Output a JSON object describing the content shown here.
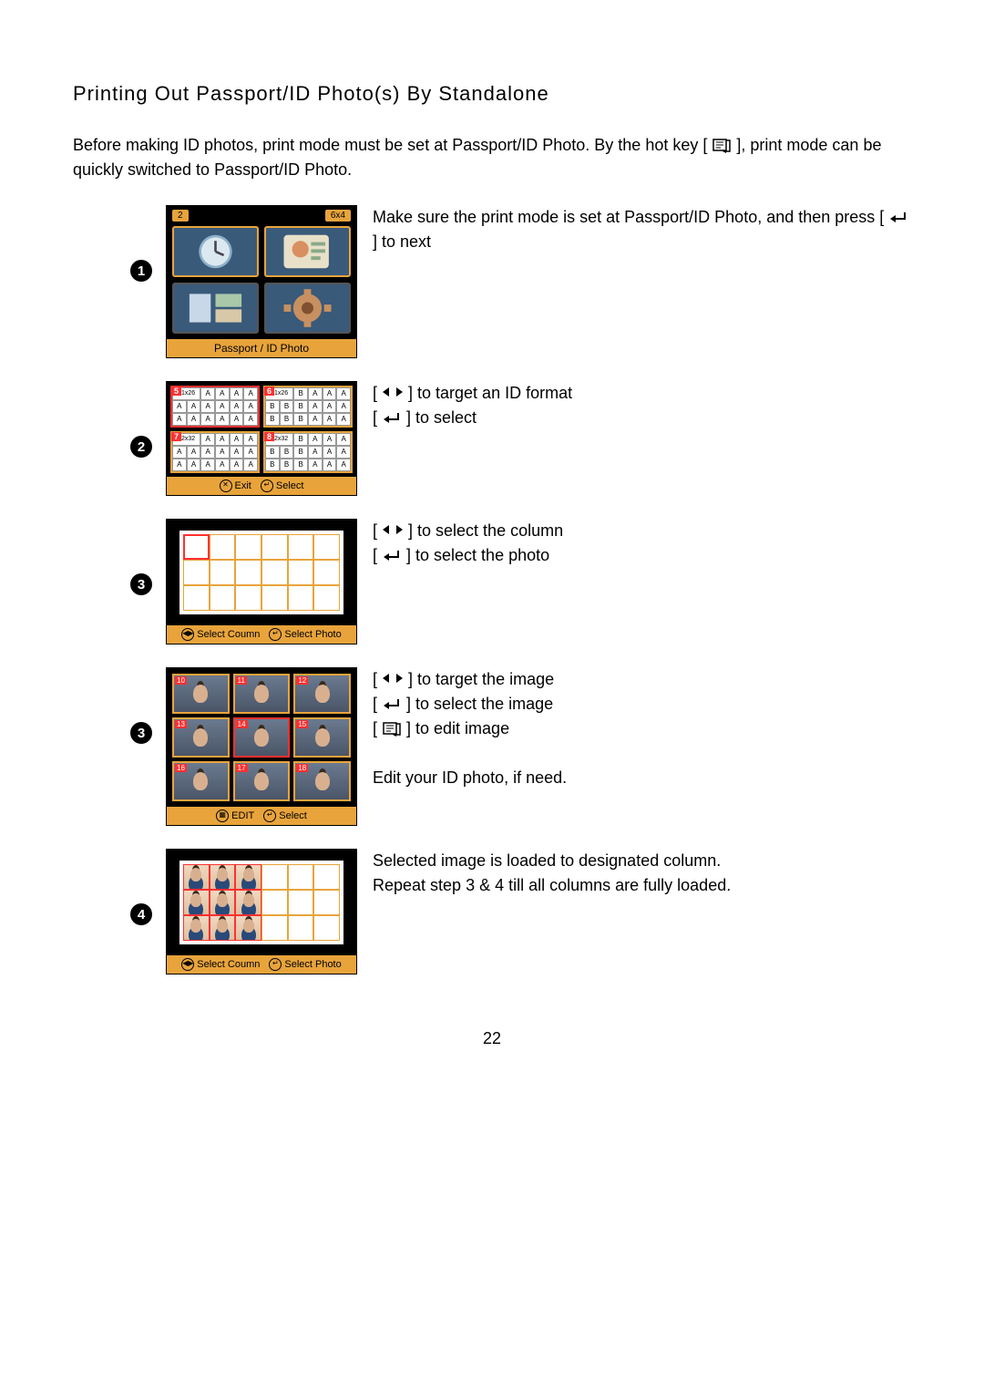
{
  "title": "Printing Out Passport/ID Photo(s) By Standalone",
  "intro_part1": "Before making ID photos, print mode must be set at Passport/ID Photo.   By the hot key [ ",
  "intro_part2": " ], print mode can be quickly switched to Passport/ID Photo.",
  "page_number": "22",
  "steps": [
    {
      "bullet": "1",
      "desc_lines": [
        {
          "pre": "Make sure the print mode is set at Passport/ID Photo, and then press [ ",
          "icon": "enter",
          "post": " ] to next"
        }
      ],
      "screen": {
        "top_left": "2",
        "top_right": "6x4",
        "caption": "Passport / ID Photo"
      }
    },
    {
      "bullet": "2",
      "desc_lines": [
        {
          "pre": "[ ",
          "icon": "leftright",
          "post": " ] to target an ID format"
        },
        {
          "pre": "[ ",
          "icon": "enter",
          "post": " ] to select"
        }
      ],
      "screen": {
        "blocks": [
          {
            "num": "5",
            "size": "21x26",
            "cells": [
              "A",
              "A",
              "A",
              "A",
              "A",
              "A",
              "A",
              "A",
              "A",
              "A",
              "A",
              "A",
              "A",
              "A",
              "A",
              "A",
              "A",
              "A"
            ],
            "sel": true
          },
          {
            "num": "6",
            "size": "21x26",
            "cells": [
              "B",
              "B",
              "B",
              "A",
              "A",
              "A",
              "B",
              "B",
              "B",
              "A",
              "A",
              "A",
              "B",
              "B",
              "B",
              "A",
              "A",
              "A"
            ],
            "sel": false
          },
          {
            "num": "7",
            "size": "22x32",
            "cells": [
              "A",
              "A",
              "A",
              "A",
              "A",
              "A",
              "A",
              "A",
              "A",
              "A",
              "A",
              "A",
              "A",
              "A",
              "A",
              "A",
              "A",
              "A"
            ],
            "sel": false
          },
          {
            "num": "8",
            "size": "22x32",
            "cells": [
              "B",
              "B",
              "B",
              "A",
              "A",
              "A",
              "B",
              "B",
              "B",
              "A",
              "A",
              "A",
              "B",
              "B",
              "B",
              "A",
              "A",
              "A"
            ],
            "sel": false
          }
        ],
        "bar": [
          {
            "icon": "✕",
            "label": "Exit"
          },
          {
            "icon": "↵",
            "label": "Select"
          }
        ]
      }
    },
    {
      "bullet": "3",
      "desc_lines": [
        {
          "pre": "[ ",
          "icon": "leftright",
          "post": " ] to select the column"
        },
        {
          "pre": "[ ",
          "icon": "enter",
          "post": " ] to select the photo"
        }
      ],
      "screen": {
        "bar": [
          {
            "icon": "◀▶",
            "label": "Select Coumn"
          },
          {
            "icon": "↵",
            "label": "Select Photo"
          }
        ]
      }
    },
    {
      "bullet": "3",
      "desc_lines": [
        {
          "pre": "[ ",
          "icon": "leftright",
          "post": " ] to target the image"
        },
        {
          "pre": "[ ",
          "icon": "enter",
          "post": " ] to select the image"
        },
        {
          "pre": "[ ",
          "icon": "hotkey",
          "post": " ] to edit image"
        },
        {
          "pre": "",
          "icon": "",
          "post": ""
        },
        {
          "pre": "Edit your ID photo, if need.",
          "icon": "",
          "post": ""
        }
      ],
      "screen": {
        "nums": [
          "10",
          "11",
          "12",
          "13",
          "14",
          "15",
          "16",
          "17",
          "18"
        ],
        "bar": [
          {
            "icon": "▦",
            "label": "EDIT"
          },
          {
            "icon": "↵",
            "label": "Select"
          }
        ]
      }
    },
    {
      "bullet": "4",
      "desc_lines": [
        {
          "pre": "Selected image is loaded to designated column.",
          "icon": "",
          "post": ""
        },
        {
          "pre": "Repeat step 3 & 4 till all columns are fully loaded.",
          "icon": "",
          "post": ""
        }
      ],
      "screen": {
        "bar": [
          {
            "icon": "◀▶",
            "label": "Select Coumn"
          },
          {
            "icon": "↵",
            "label": "Select Photo"
          }
        ]
      }
    }
  ]
}
